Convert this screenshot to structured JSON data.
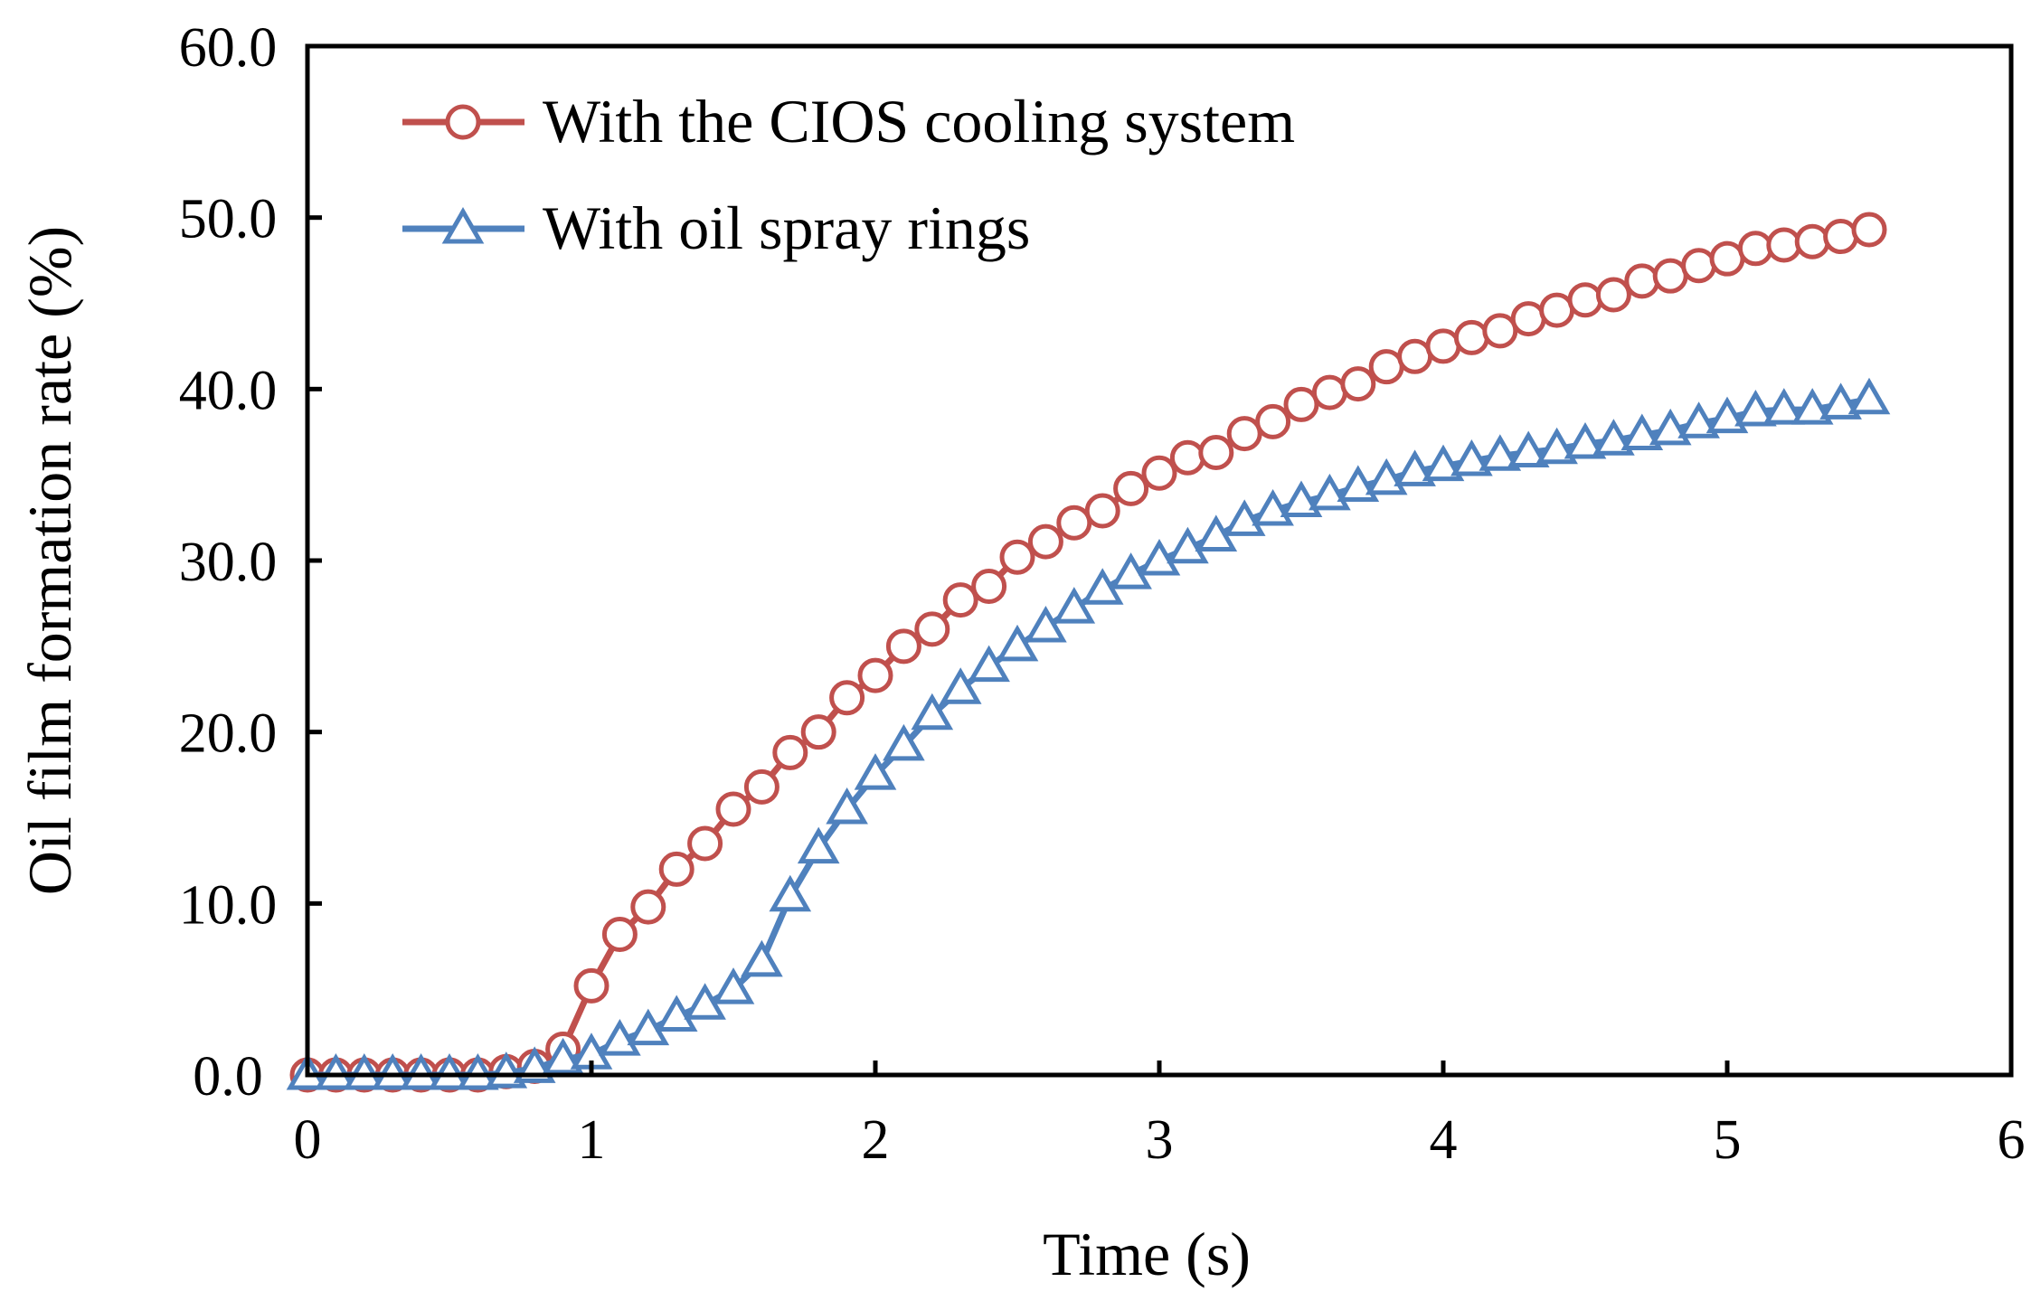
{
  "chart_data": {
    "type": "line",
    "title": "",
    "xlabel": "Time (s)",
    "ylabel": "Oil film formation rate (%)",
    "xlim": [
      0,
      6
    ],
    "ylim": [
      0,
      60
    ],
    "xticks": [
      "0",
      "1",
      "2",
      "3",
      "4",
      "5",
      "6"
    ],
    "yticks": [
      "0.0",
      "10.0",
      "20.0",
      "30.0",
      "40.0",
      "50.0",
      "60.0"
    ],
    "grid": false,
    "legend_position": "top-left",
    "x": [
      0,
      0.1,
      0.2,
      0.3,
      0.4,
      0.5,
      0.6,
      0.7,
      0.8,
      0.9,
      1.0,
      1.1,
      1.2,
      1.3,
      1.4,
      1.5,
      1.6,
      1.7,
      1.8,
      1.9,
      2.0,
      2.1,
      2.2,
      2.3,
      2.4,
      2.5,
      2.6,
      2.7,
      2.8,
      2.9,
      3.0,
      3.1,
      3.2,
      3.3,
      3.4,
      3.5,
      3.6,
      3.7,
      3.8,
      3.9,
      4.0,
      4.1,
      4.2,
      4.3,
      4.4,
      4.5,
      4.6,
      4.7,
      4.8,
      4.9,
      5.0,
      5.1,
      5.2,
      5.3,
      5.4,
      5.5
    ],
    "series": [
      {
        "name": "With the CIOS cooling system",
        "color": "#C0504D",
        "marker": "circle",
        "values": [
          0,
          0,
          0,
          0,
          0,
          0,
          0,
          0.2,
          0.5,
          1.5,
          5.2,
          8.2,
          9.8,
          12.0,
          13.5,
          15.5,
          16.8,
          18.8,
          20.0,
          22.0,
          23.3,
          25.0,
          26.0,
          27.7,
          28.5,
          30.2,
          31.1,
          32.2,
          32.9,
          34.2,
          35.1,
          36.0,
          36.3,
          37.4,
          38.1,
          39.1,
          39.8,
          40.3,
          41.3,
          41.9,
          42.5,
          43.0,
          43.4,
          44.1,
          44.6,
          45.2,
          45.5,
          46.3,
          46.6,
          47.2,
          47.6,
          48.2,
          48.4,
          48.6,
          48.9,
          49.3
        ]
      },
      {
        "name": "With oil spray rings",
        "color": "#4F81BD",
        "marker": "triangle",
        "values": [
          0,
          0,
          0,
          0,
          0,
          0,
          0,
          0.1,
          0.4,
          0.9,
          1.2,
          2.0,
          2.6,
          3.4,
          4.1,
          5.0,
          6.6,
          10.4,
          13.2,
          15.5,
          17.5,
          19.2,
          21.0,
          22.5,
          23.8,
          25.0,
          26.1,
          27.2,
          28.3,
          29.2,
          30.0,
          30.7,
          31.4,
          32.3,
          32.9,
          33.4,
          33.8,
          34.3,
          34.7,
          35.2,
          35.5,
          35.8,
          36.1,
          36.3,
          36.5,
          36.8,
          37.0,
          37.3,
          37.6,
          38.0,
          38.3,
          38.7,
          38.8,
          38.8,
          39.1,
          39.4
        ]
      }
    ]
  }
}
